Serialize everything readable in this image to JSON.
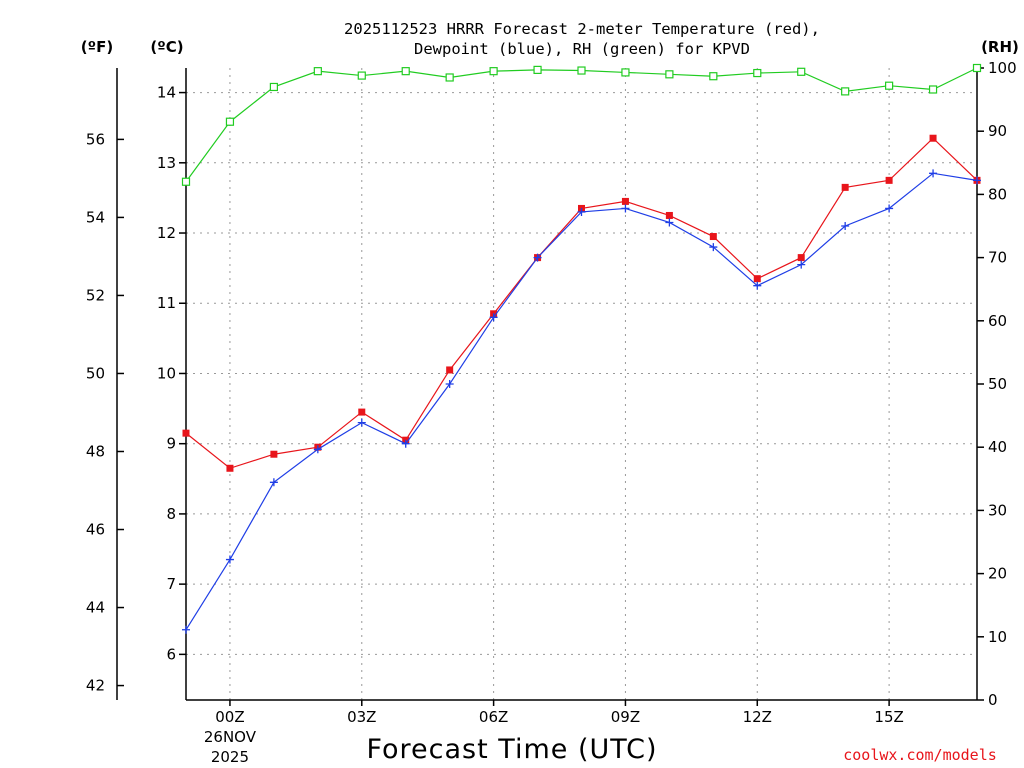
{
  "chart_data": {
    "type": "line",
    "title_lines": [
      "2025112523 HRRR Forecast 2-meter Temperature (red),",
      "Dewpoint (blue), RH (green) for KPVD"
    ],
    "xlabel": "Forecast Time (UTC)",
    "credit": "coolwx.com/models",
    "unit_labels": {
      "fahrenheit": "(ºF)",
      "celsius": "(ºC)",
      "rh": "(RH)"
    },
    "x_hours": [
      -1,
      0,
      1,
      2,
      3,
      4,
      5,
      6,
      7,
      8,
      9,
      10,
      11,
      12,
      13,
      14,
      15,
      16,
      17
    ],
    "x_range": [
      -1,
      17
    ],
    "x_ticks": [
      {
        "hour": 0,
        "label": "00Z",
        "sublabels": [
          "26NOV",
          "2025"
        ]
      },
      {
        "hour": 3,
        "label": "03Z",
        "sublabels": []
      },
      {
        "hour": 6,
        "label": "06Z",
        "sublabels": []
      },
      {
        "hour": 9,
        "label": "09Z",
        "sublabels": []
      },
      {
        "hour": 12,
        "label": "12Z",
        "sublabels": []
      },
      {
        "hour": 15,
        "label": "15Z",
        "sublabels": []
      }
    ],
    "celsius_range": [
      5.35,
      14.35
    ],
    "celsius_ticks": [
      "6",
      "7",
      "8",
      "9",
      "10",
      "11",
      "12",
      "13",
      "14"
    ],
    "fahrenheit_ticks": [
      "42",
      "44",
      "46",
      "48",
      "50",
      "52",
      "54",
      "56"
    ],
    "rh_range": [
      0,
      100
    ],
    "rh_ticks": [
      "0",
      "10",
      "20",
      "30",
      "40",
      "50",
      "60",
      "70",
      "80",
      "90",
      "100"
    ],
    "series": [
      {
        "name": "2-meter Temperature",
        "unit": "C",
        "color": "#e8151b",
        "marker": "filled-square",
        "values": [
          9.15,
          8.65,
          8.85,
          8.95,
          9.45,
          9.05,
          10.05,
          10.85,
          11.65,
          12.35,
          12.45,
          12.25,
          11.95,
          11.35,
          11.65,
          12.65,
          12.75,
          13.35,
          12.75
        ]
      },
      {
        "name": "Dewpoint",
        "unit": "C",
        "color": "#1f3ee6",
        "marker": "plus",
        "values": [
          6.35,
          7.35,
          8.45,
          8.92,
          9.3,
          9.0,
          9.85,
          10.8,
          11.65,
          12.3,
          12.35,
          12.15,
          11.8,
          11.25,
          11.55,
          12.1,
          12.35,
          12.85,
          12.75
        ]
      },
      {
        "name": "RH",
        "unit": "%",
        "color": "#21cc21",
        "marker": "open-square",
        "values": [
          82,
          91.5,
          97,
          99.5,
          98.8,
          99.5,
          98.5,
          99.5,
          99.7,
          99.6,
          99.3,
          99,
          98.7,
          99.2,
          99.4,
          96.3,
          97.2,
          96.6,
          100
        ]
      }
    ]
  }
}
